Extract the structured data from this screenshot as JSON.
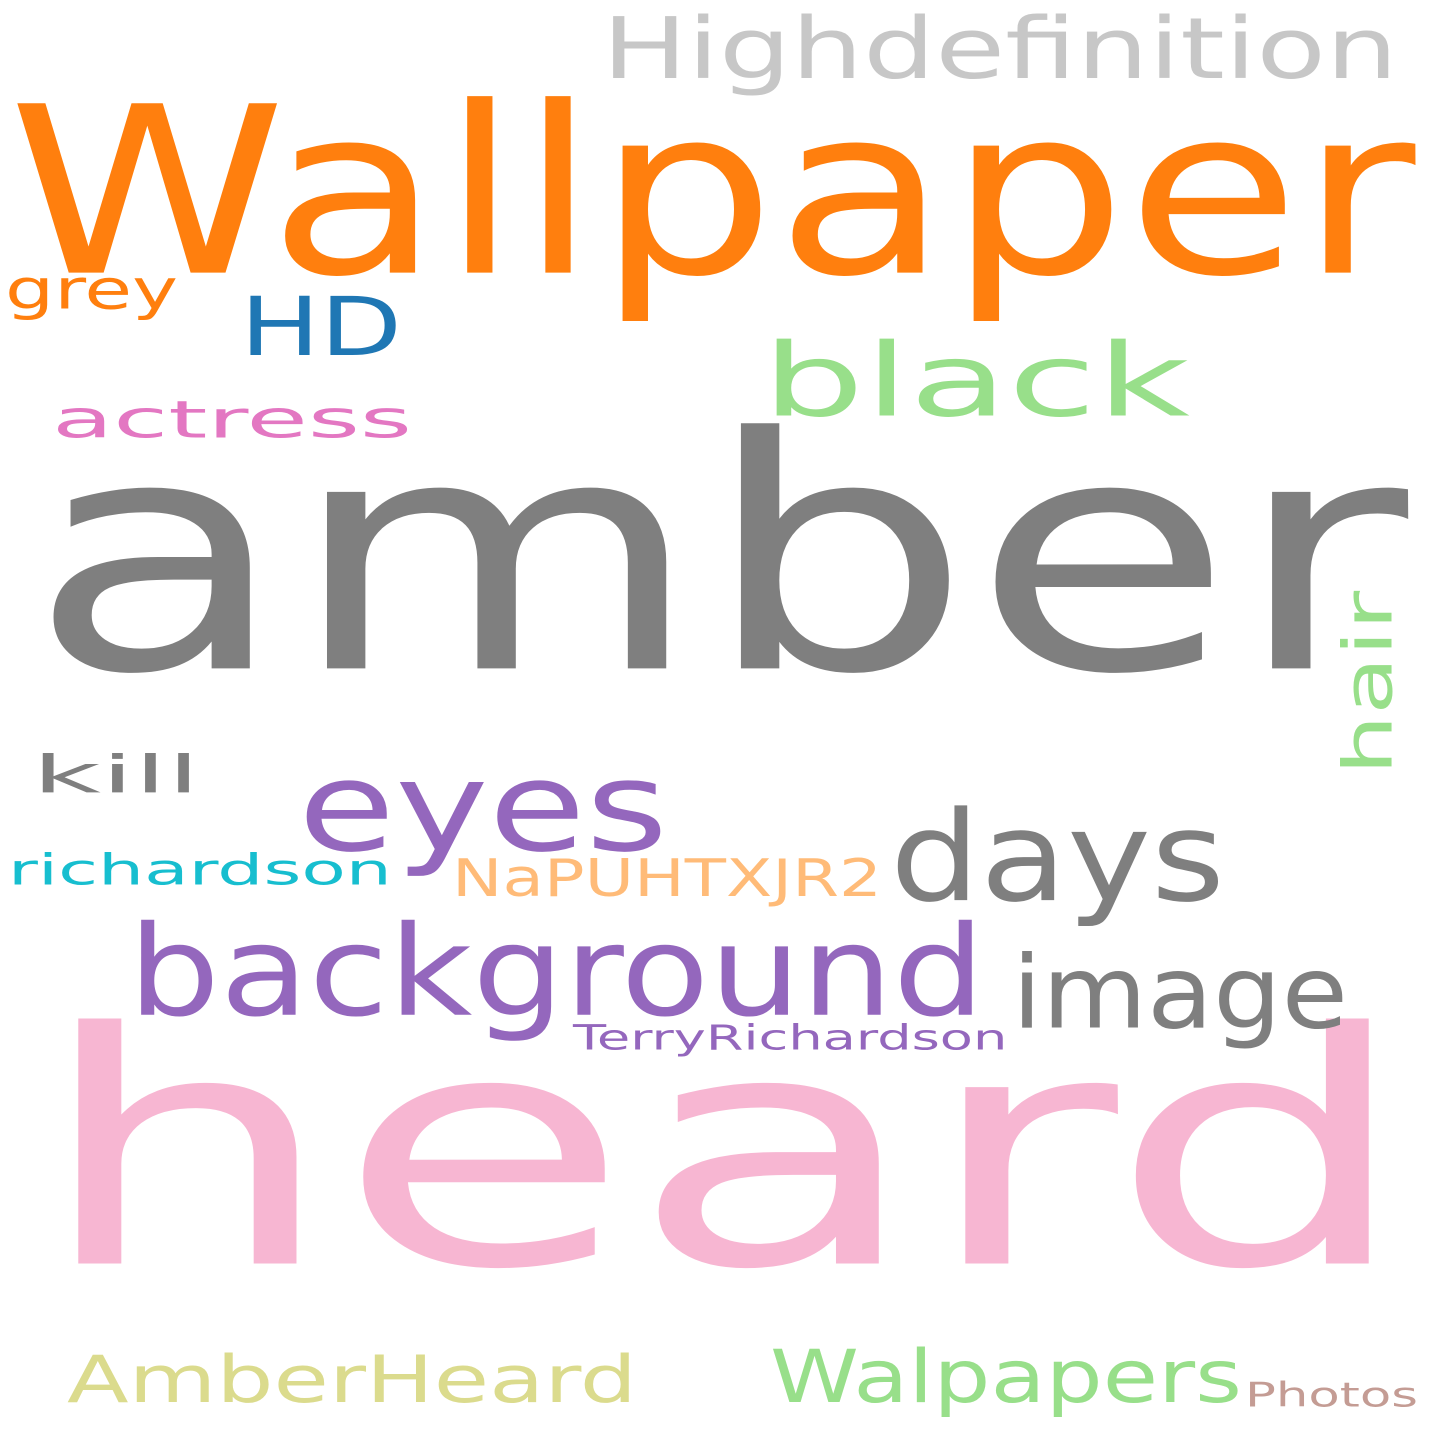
{
  "words": [
    {
      "text": "amber",
      "color": "#7f7f7f"
    },
    {
      "text": "heard",
      "color": "#f7b6d2"
    },
    {
      "text": "Wallpaper",
      "color": "#ff7f0e"
    },
    {
      "text": "background",
      "color": "#9467bd"
    },
    {
      "text": "eyes",
      "color": "#9467bd"
    },
    {
      "text": "days",
      "color": "#7f7f7f"
    },
    {
      "text": "black",
      "color": "#98df8a"
    },
    {
      "text": "Highdefinition",
      "color": "#c7c7c7"
    },
    {
      "text": "HD",
      "color": "#1f77b4"
    },
    {
      "text": "image",
      "color": "#7f7f7f"
    },
    {
      "text": "AmberHeard",
      "color": "#dbdb8d"
    },
    {
      "text": "Walpapers",
      "color": "#98df8a"
    },
    {
      "text": "actress",
      "color": "#e377c2"
    },
    {
      "text": "NaPUHTXJR2",
      "color": "#ffbb78"
    },
    {
      "text": "richardson",
      "color": "#17becf"
    },
    {
      "text": "hair",
      "color": "#98df8a"
    },
    {
      "text": "kill",
      "color": "#7f7f7f"
    },
    {
      "text": "grey",
      "color": "#ff7f0e"
    },
    {
      "text": "TerryRichardson",
      "color": "#9467bd"
    },
    {
      "text": "Photos",
      "color": "#c49c94"
    }
  ]
}
